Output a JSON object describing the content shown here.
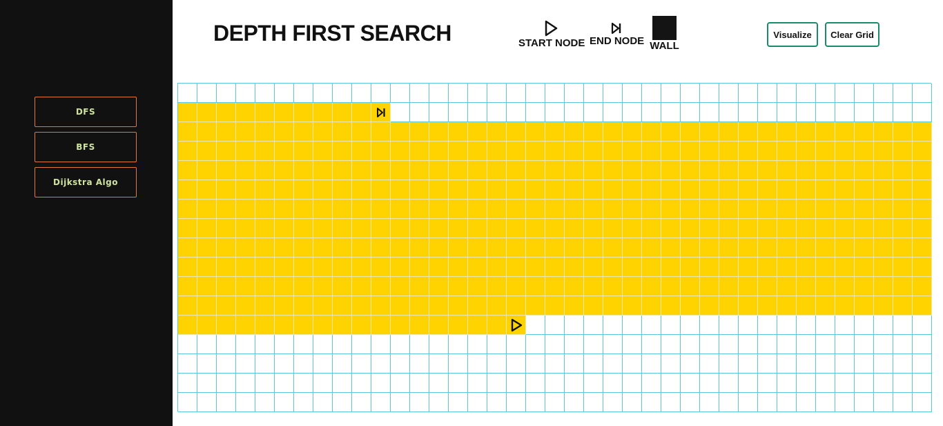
{
  "sidebar": {
    "buttons": [
      {
        "label": "DFS"
      },
      {
        "label": "BFS"
      },
      {
        "label": "Dijkstra Algo"
      }
    ]
  },
  "header": {
    "title": "DEPTH FIRST SEARCH",
    "legend": {
      "start_label": "START NODE",
      "end_label": "END NODE",
      "wall_label": "WALL"
    },
    "visualize_label": "Visualize",
    "clear_label": "Clear Grid"
  },
  "grid": {
    "rows": 17,
    "cols": 39,
    "start_node": {
      "row": 12,
      "col": 17
    },
    "end_node": {
      "row": 1,
      "col": 10
    },
    "visited_rows": [
      {
        "row": 1,
        "from": 0,
        "to": 10
      },
      {
        "row": 2,
        "from": 0,
        "to": 38
      },
      {
        "row": 3,
        "from": 0,
        "to": 38
      },
      {
        "row": 4,
        "from": 0,
        "to": 38
      },
      {
        "row": 5,
        "from": 0,
        "to": 38
      },
      {
        "row": 6,
        "from": 0,
        "to": 38
      },
      {
        "row": 7,
        "from": 0,
        "to": 38
      },
      {
        "row": 8,
        "from": 0,
        "to": 38
      },
      {
        "row": 9,
        "from": 0,
        "to": 38
      },
      {
        "row": 10,
        "from": 0,
        "to": 38
      },
      {
        "row": 11,
        "from": 0,
        "to": 38
      },
      {
        "row": 12,
        "from": 0,
        "to": 17
      }
    ],
    "colors": {
      "visited": "#ffd300",
      "empty": "#ffffff",
      "border": "#5bc8da"
    }
  }
}
